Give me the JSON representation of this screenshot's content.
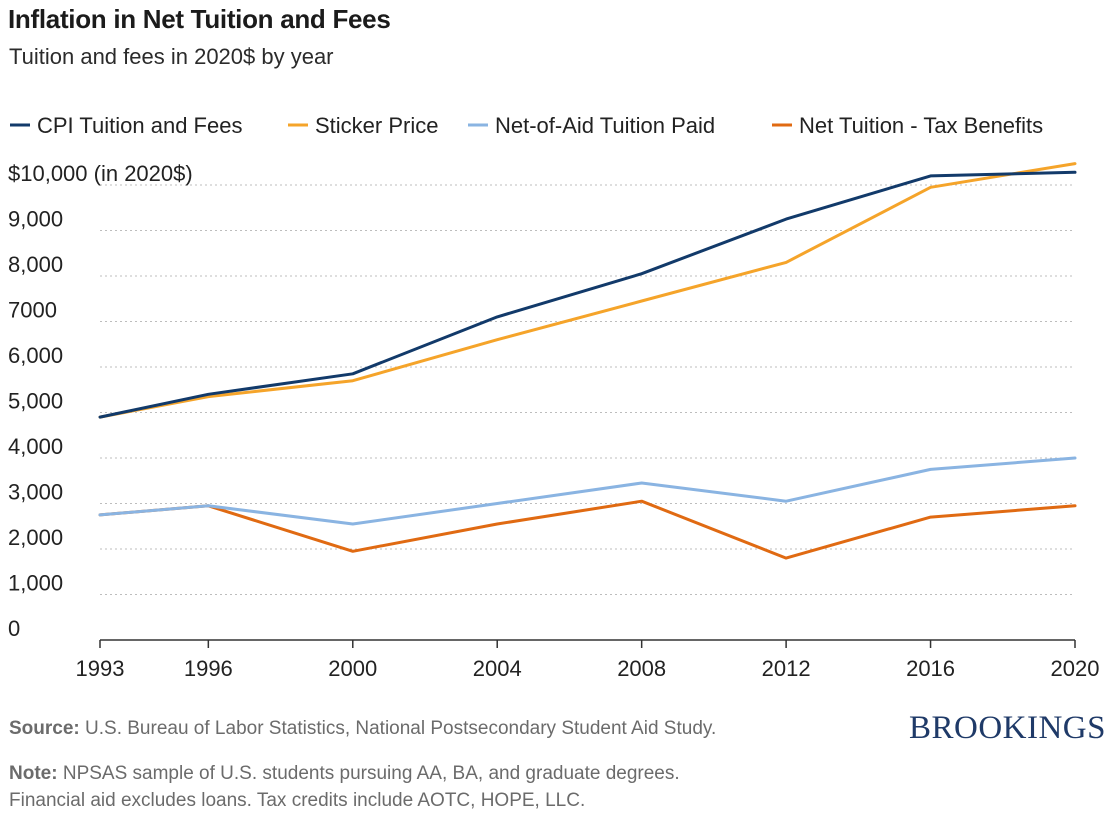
{
  "title": "Inflation in Net Tuition and Fees",
  "subtitle": "Tuition and fees in 2020$ by year",
  "source_label": "Source:",
  "source_text": " U.S. Bureau of Labor Statistics, National Postsecondary Student Aid Study.",
  "note_label": "Note:",
  "note_line1": " NPSAS sample of U.S. students pursuing AA, BA, and graduate degrees.",
  "note_line2": "Financial aid excludes loans. Tax credits include AOTC, HOPE, LLC.",
  "logo": "BROOKINGS",
  "chart_data": {
    "type": "line",
    "x": [
      1993,
      1996,
      2000,
      2004,
      2008,
      2012,
      2016,
      2020
    ],
    "xlim": [
      1993,
      2020
    ],
    "ylim": [
      0,
      10000
    ],
    "y_ticks": [
      0,
      1000,
      2000,
      3000,
      4000,
      5000,
      6000,
      7000,
      8000,
      9000,
      10000
    ],
    "y_tick_labels": [
      "0",
      "1,000",
      "2,000",
      "3,000",
      "4,000",
      "5,000",
      "6,000",
      "7000",
      "8,000",
      "9,000",
      "$10,000 (in 2020$)"
    ],
    "x_tick_labels": [
      "1993",
      "1996",
      "2000",
      "2004",
      "2008",
      "2012",
      "2016",
      "2020"
    ],
    "grid": "horizontal dotted",
    "legend_position": "top",
    "series": [
      {
        "name": "CPI Tuition and Fees",
        "color": "#123a6a",
        "values": [
          4900,
          5400,
          5850,
          7100,
          8050,
          9250,
          10200,
          10280
        ]
      },
      {
        "name": "Sticker Price",
        "color": "#f5a42a",
        "values": [
          4900,
          5350,
          5700,
          6600,
          7450,
          8300,
          9950,
          10470
        ]
      },
      {
        "name": "Net-of-Aid Tuition Paid",
        "color": "#8ab4e2",
        "values": [
          2750,
          2950,
          2550,
          3000,
          3450,
          3050,
          3750,
          4000
        ]
      },
      {
        "name": "Net Tuition - Tax Benefits",
        "color": "#e06a12",
        "values": [
          2750,
          2950,
          1950,
          2550,
          3050,
          1800,
          2700,
          2950
        ]
      }
    ]
  }
}
